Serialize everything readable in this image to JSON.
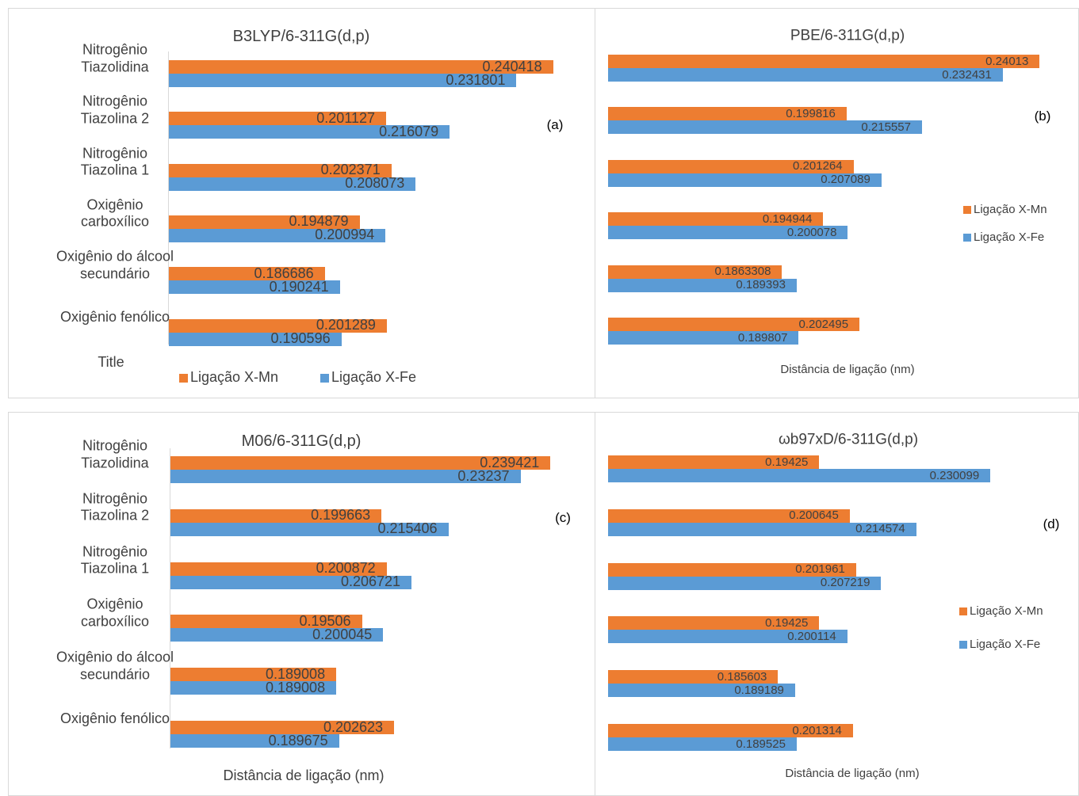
{
  "chart_data": [
    {
      "type": "bar",
      "orientation": "horizontal",
      "title": "B3LYP/6-311G(d,p)",
      "annotation": "(a)",
      "ylabel": "Title",
      "legend": "bottom",
      "categories": [
        "Nitrogênio\nTiazolidina",
        "Nitrogênio\nTiazolina 2",
        "Nitrogênio\nTiazolina 1",
        "Oxigênio\ncarboxílico",
        "Oxigênio do álcool\nsecundário",
        "Oxigênio fenólico"
      ],
      "series": [
        {
          "name": "Ligação X-Mn",
          "color": "#ed7d31",
          "values": [
            0.240418,
            0.201127,
            0.202371,
            0.194879,
            0.186686,
            0.201289
          ]
        },
        {
          "name": "Ligação X-Fe",
          "color": "#5b9bd5",
          "values": [
            0.231801,
            0.216079,
            0.208073,
            0.200994,
            0.190241,
            0.190596
          ]
        }
      ],
      "xlim": [
        0.15,
        0.25
      ]
    },
    {
      "type": "bar",
      "orientation": "horizontal",
      "title": "PBE/6-311G(d,p)",
      "annotation": "(b)",
      "xlabel": "Distância de ligação (nm)",
      "legend": "right",
      "categories": [
        null,
        null,
        null,
        null,
        null,
        null
      ],
      "series": [
        {
          "name": "Ligação X-Mn",
          "color": "#ed7d31",
          "values": [
            0.24013,
            0.199816,
            0.201264,
            0.194944,
            0.1863308,
            0.202495
          ]
        },
        {
          "name": "Ligação X-Fe",
          "color": "#5b9bd5",
          "values": [
            0.232431,
            0.215557,
            0.207089,
            0.200078,
            0.189393,
            0.189807
          ]
        }
      ],
      "xlim": [
        0.15,
        0.25
      ]
    },
    {
      "type": "bar",
      "orientation": "horizontal",
      "title": "M06/6-311G(d,p)",
      "annotation": "(c)",
      "xlabel": "Distância de ligação (nm)",
      "legend": "none",
      "categories": [
        "Nitrogênio\nTiazolidina",
        "Nitrogênio\nTiazolina 2",
        "Nitrogênio\nTiazolina 1",
        "Oxigênio\ncarboxílico",
        "Oxigênio do álcool\nsecundário",
        "Oxigênio fenólico"
      ],
      "series": [
        {
          "name": "Ligação X-Mn",
          "color": "#ed7d31",
          "values": [
            0.239421,
            0.199663,
            0.200872,
            0.19506,
            0.189008,
            0.202623
          ]
        },
        {
          "name": "Ligação X-Fe",
          "color": "#5b9bd5",
          "values": [
            0.23237,
            0.215406,
            0.206721,
            0.200045,
            0.189008,
            0.189675
          ]
        }
      ],
      "xlim": [
        0.15,
        0.25
      ]
    },
    {
      "type": "bar",
      "orientation": "horizontal",
      "title": "ωb97xD/6-311G(d,p)",
      "annotation": "(d)",
      "xlabel": "Distância de ligação (nm)",
      "legend": "right",
      "categories": [
        null,
        null,
        null,
        null,
        null,
        null
      ],
      "series": [
        {
          "name": "Ligação X-Mn",
          "color": "#ed7d31",
          "values": [
            0.19425,
            0.200645,
            0.201961,
            0.19425,
            0.185603,
            0.201314
          ]
        },
        {
          "name": "Ligação X-Fe",
          "color": "#5b9bd5",
          "values": [
            0.230099,
            0.214574,
            0.207219,
            0.200114,
            0.189189,
            0.189525
          ]
        }
      ],
      "xlim": [
        0.15,
        0.25
      ]
    }
  ]
}
